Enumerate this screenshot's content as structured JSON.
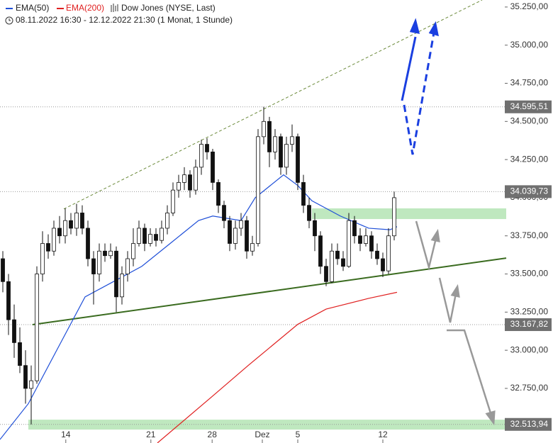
{
  "chart_data": {
    "type": "candlestick",
    "title": "Dow Jones (NYSE, Last)",
    "subtitle": "08.11.2022 16:30 - 12.12.2022 21:30  (1 Monat, 1 Stunde)",
    "xlim": [
      -0.5,
      88.75
    ],
    "ylim": [
      32392,
      35296
    ],
    "xticks": [
      {
        "value": 11.1,
        "label": "14"
      },
      {
        "value": 26.1,
        "label": "21"
      },
      {
        "value": 36.9,
        "label": "28"
      },
      {
        "value": 45.75,
        "label": "Dez"
      },
      {
        "value": 52,
        "label": "5"
      },
      {
        "value": 67,
        "label": "12"
      }
    ],
    "yticks": [
      {
        "value": 32750,
        "label": "32.750,00"
      },
      {
        "value": 33000,
        "label": "33.000,00"
      },
      {
        "value": 33250,
        "label": "33.250,00"
      },
      {
        "value": 33500,
        "label": "33.500,00"
      },
      {
        "value": 33750,
        "label": "33.750,00"
      },
      {
        "value": 34000,
        "label": "34.000,00"
      },
      {
        "value": 34250,
        "label": "34.250,00"
      },
      {
        "value": 34500,
        "label": "34.500,00"
      },
      {
        "value": 34750,
        "label": "34.750,00"
      },
      {
        "value": 35000,
        "label": "35.000,00"
      },
      {
        "value": 35250,
        "label": "35.250,00"
      }
    ],
    "open": [
      33600,
      33450,
      33200,
      33050,
      32900,
      32750,
      32800,
      33500,
      33700,
      33650,
      33800,
      33750,
      33850,
      33800,
      33900,
      33800,
      33600,
      33500,
      33650,
      33620,
      33650,
      33350,
      33500,
      33600,
      33700,
      33800,
      33700,
      33760,
      33720,
      33800,
      33900,
      34050,
      34100,
      34150,
      34050,
      34200,
      34350,
      34300,
      34100,
      33950,
      33850,
      33700,
      33800,
      33850,
      33650,
      33700,
      34400,
      34500,
      34300,
      34400,
      34200,
      34350,
      34400,
      34100,
      33950,
      33850,
      33750,
      33550,
      33450,
      33650,
      33600,
      33550,
      33850,
      33750,
      33700,
      33750,
      33650,
      33600,
      33520,
      33750
    ],
    "high": [
      33650,
      33500,
      33300,
      33150,
      33000,
      32900,
      33550,
      33780,
      33760,
      33850,
      33880,
      33930,
      33900,
      33960,
      33950,
      33850,
      33650,
      33700,
      33700,
      33700,
      33680,
      33550,
      33650,
      33800,
      33850,
      33830,
      33800,
      33800,
      33850,
      33950,
      34100,
      34150,
      34200,
      34180,
      34250,
      34380,
      34390,
      34320,
      34120,
      33980,
      33880,
      33850,
      33900,
      33880,
      33750,
      34450,
      34595.51,
      34530,
      34450,
      34420,
      34400,
      34480,
      34420,
      34150,
      34000,
      33900,
      33780,
      33600,
      33700,
      33700,
      33650,
      33900,
      33880,
      33800,
      33800,
      33780,
      33700,
      33640,
      33800,
      34039.73
    ],
    "low": [
      33380,
      33100,
      32950,
      32850,
      32650,
      32513.94,
      32780,
      33450,
      33600,
      33620,
      33700,
      33700,
      33760,
      33750,
      33760,
      33550,
      33300,
      33450,
      33580,
      33600,
      33250,
      33300,
      33450,
      33550,
      33680,
      33650,
      33680,
      33680,
      33700,
      33760,
      33880,
      34000,
      34050,
      34000,
      34020,
      34150,
      34250,
      34050,
      33900,
      33800,
      33650,
      33660,
      33750,
      33600,
      33620,
      33680,
      34350,
      34200,
      34250,
      34150,
      34150,
      34300,
      34050,
      33900,
      33800,
      33650,
      33500,
      33420,
      33440,
      33560,
      33520,
      33540,
      33700,
      33650,
      33680,
      33600,
      33560,
      33480,
      33500,
      33720
    ],
    "close": [
      33450,
      33200,
      33050,
      32900,
      32750,
      32800,
      33500,
      33700,
      33650,
      33800,
      33750,
      33850,
      33800,
      33900,
      33800,
      33600,
      33500,
      33650,
      33620,
      33650,
      33350,
      33500,
      33600,
      33700,
      33800,
      33700,
      33760,
      33720,
      33800,
      33900,
      34050,
      34100,
      34150,
      34050,
      34200,
      34350,
      34300,
      34100,
      33950,
      33850,
      33700,
      33800,
      33850,
      33650,
      33700,
      34400,
      34500,
      34300,
      34400,
      34200,
      34350,
      34400,
      34100,
      33950,
      33850,
      33750,
      33550,
      33450,
      33650,
      33600,
      33550,
      33850,
      33750,
      33700,
      33750,
      33650,
      33600,
      33520,
      33750,
      34000
    ],
    "series": [
      {
        "name": "EMA(50)",
        "color": "#1f4fd8",
        "x": [
          -0.5,
          4.5,
          9.5,
          14.5,
          19.5,
          24.5,
          29.5,
          34.5,
          37,
          42,
          44.5,
          49.5,
          52,
          54.5,
          59.5,
          64.5,
          68.25,
          69.5
        ],
        "values": [
          32415,
          32650,
          33000,
          33350,
          33450,
          33550,
          33700,
          33850,
          33880,
          33850,
          34000,
          34150,
          34080,
          33980,
          33880,
          33800,
          33790,
          33810
        ]
      },
      {
        "name": "EMA(200)",
        "color": "#e02020",
        "x": [
          27.25,
          37,
          43.25,
          52,
          57,
          64.5,
          69.5
        ],
        "values": [
          32392,
          32700,
          32900,
          33170,
          33270,
          33340,
          33380
        ]
      }
    ],
    "levels": [
      {
        "value": 34595.51,
        "label": "34.595,51"
      },
      {
        "value": 34039.73,
        "label": "34.039,73"
      },
      {
        "value": 33167.82,
        "label": "33.167,82"
      },
      {
        "value": 32513.94,
        "label": "32.513,94"
      }
    ],
    "zones": [
      {
        "x": [
          54.5,
          88.75
        ],
        "y": [
          33860,
          33930
        ]
      },
      {
        "x": [
          4.5,
          88.75
        ],
        "y": [
          32480,
          32545
        ]
      }
    ],
    "trendlines": [
      {
        "x": [
          5.25,
          88.75
        ],
        "y": [
          33167.82,
          33604
        ],
        "color": "#3a6b1f",
        "style": "solid"
      },
      {
        "x": [
          10.75,
          84.5
        ],
        "y": [
          33926,
          35296
        ],
        "color": "#6b8a3a",
        "style": "dashed"
      }
    ]
  }
}
